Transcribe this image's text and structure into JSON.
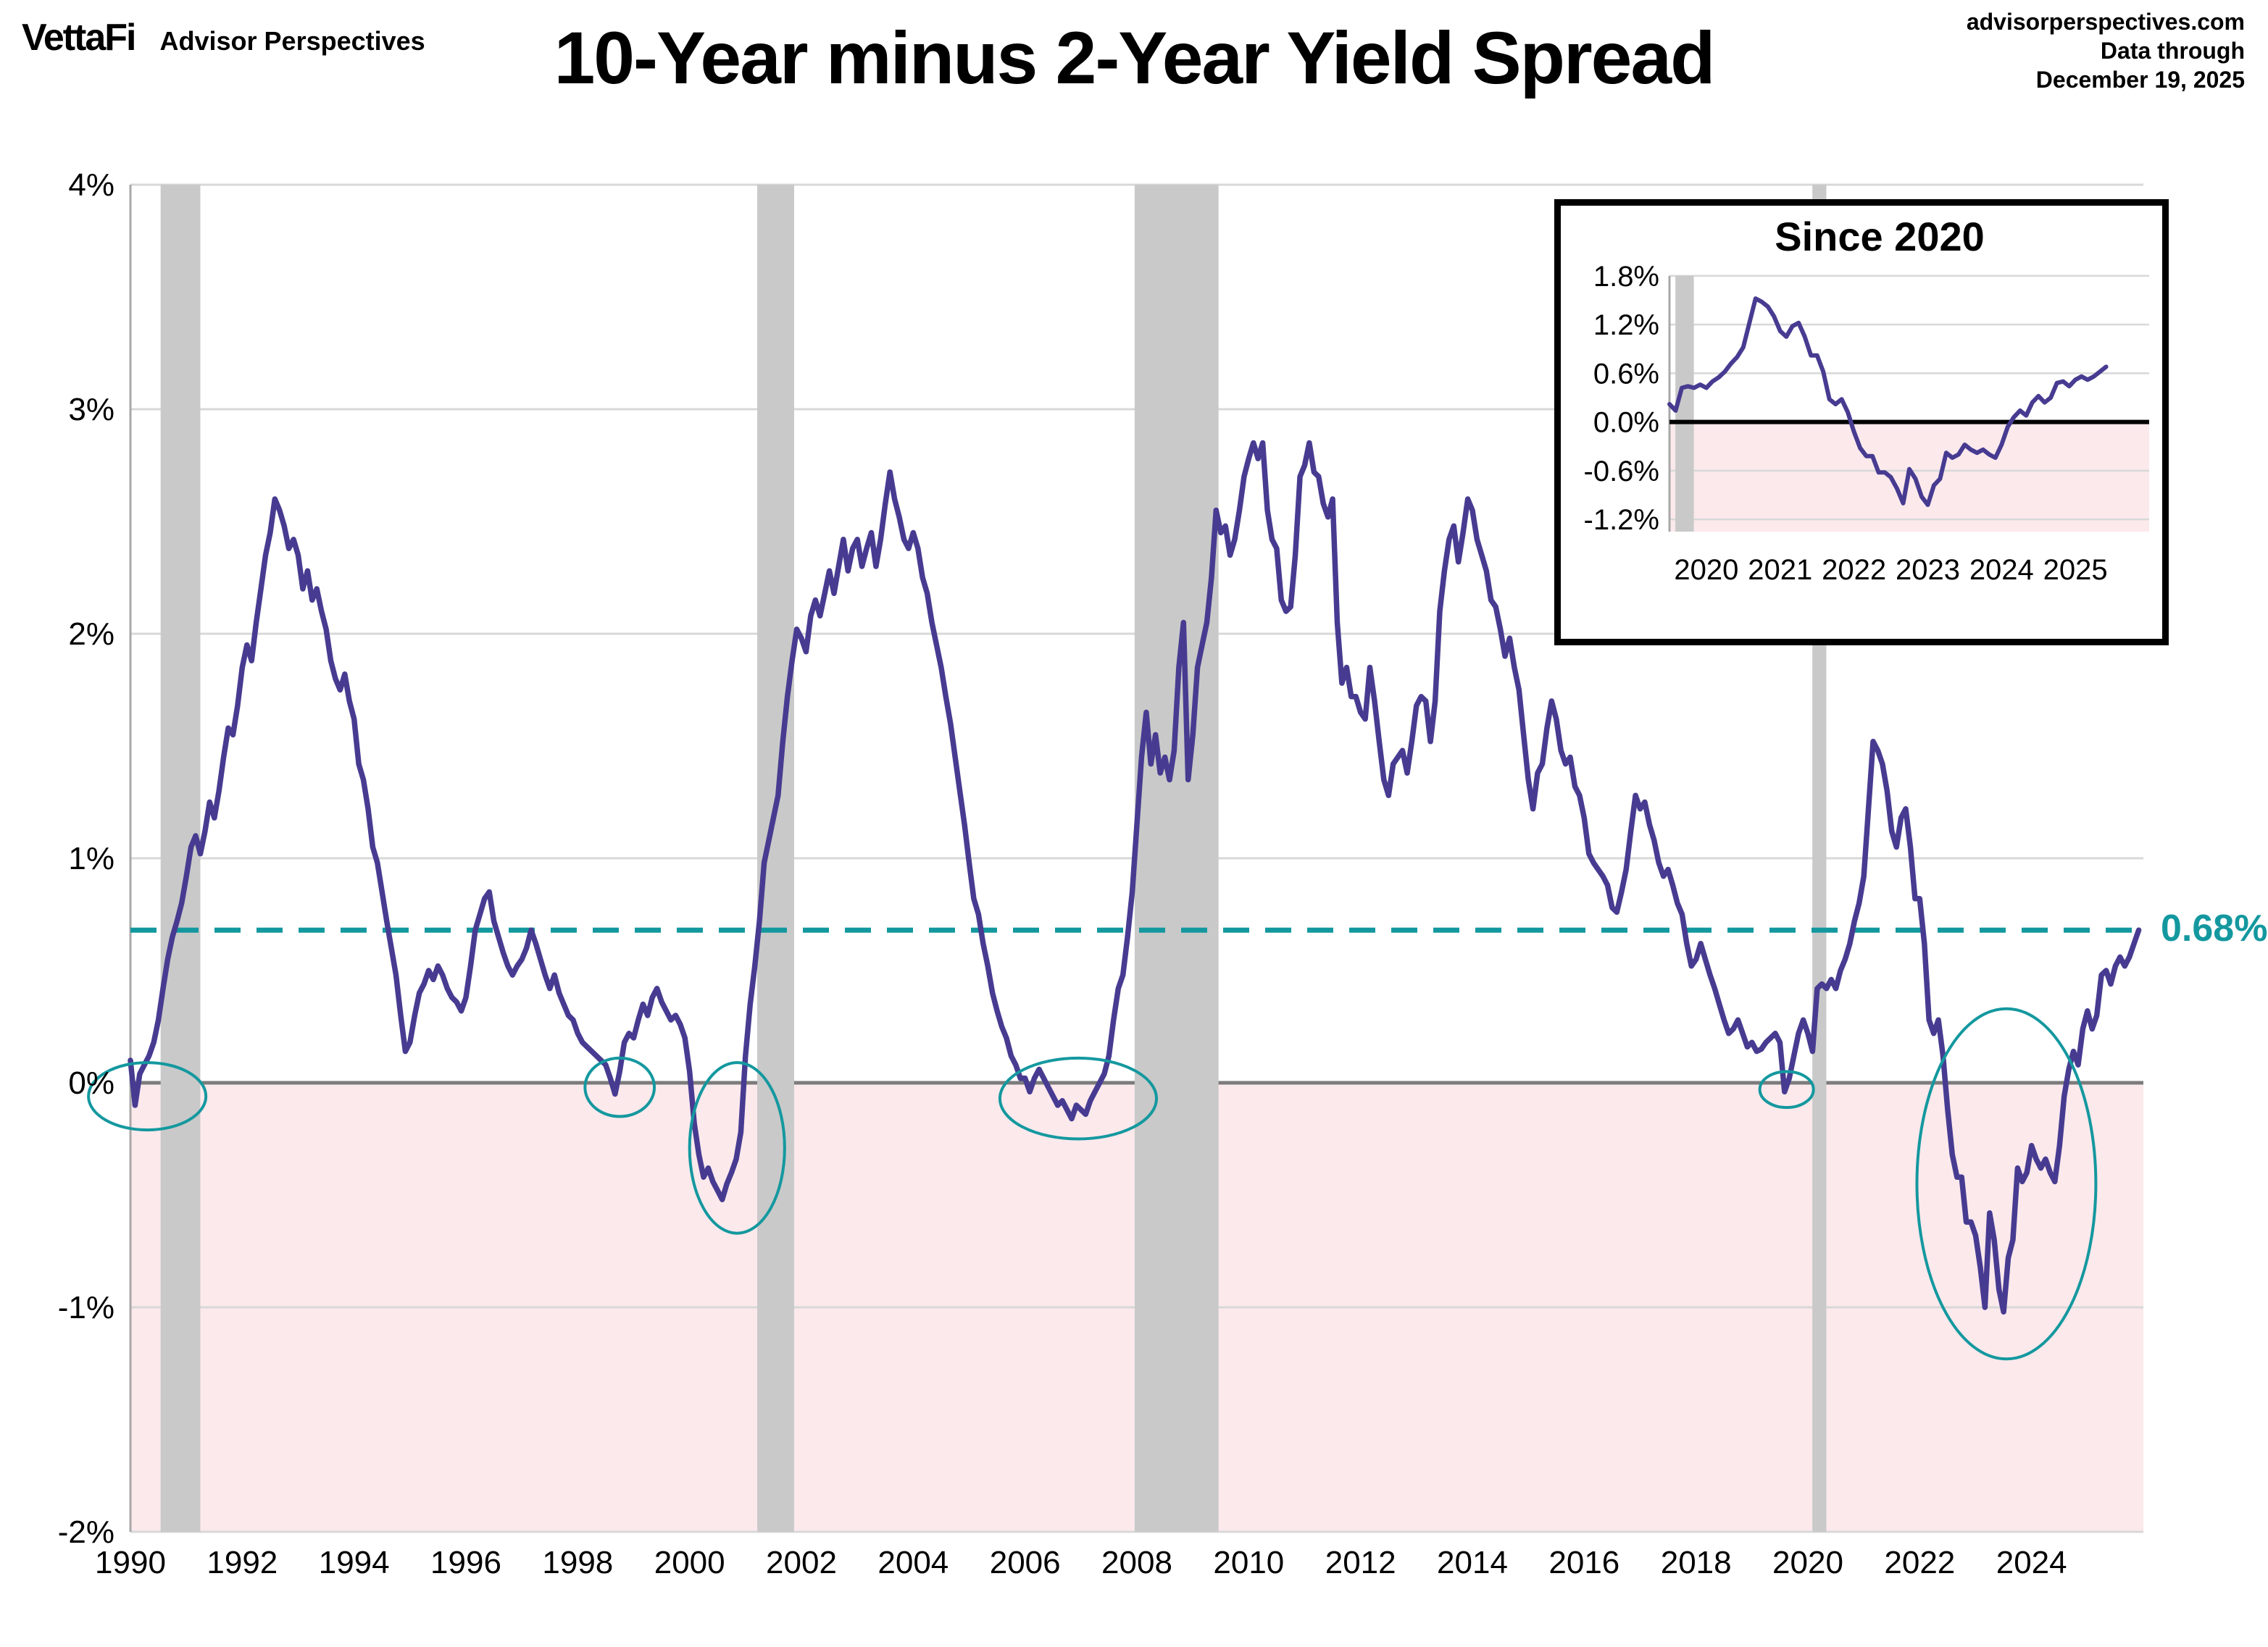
{
  "header": {
    "logo_text": "VettaFi",
    "logo_subtext": "Advisor Perspectives",
    "title": "10-Year minus 2-Year Yield Spread",
    "source_line1": "advisorperspectives.com",
    "source_line2": "Data through",
    "source_line3": "December 19, 2025"
  },
  "colors": {
    "line": "#473B91",
    "teal": "#14989F",
    "pink": "#FBE9EC",
    "recession": "#C9C9C9",
    "gridline": "#D8D8D8",
    "zero_line": "#7C7C7C",
    "axis_line": "#A8A8A8",
    "text": "#000000"
  },
  "chart_data": {
    "type": "line",
    "title": "10-Year minus 2-Year Yield Spread",
    "xlabel": "",
    "ylabel": "",
    "x_range": [
      1990,
      2026
    ],
    "ylim_pct": [
      -2,
      4
    ],
    "grid": "horizontal",
    "y_ticks": [
      "4%",
      "3%",
      "2%",
      "1%",
      "0%",
      "-1%",
      "-2%"
    ],
    "y_tick_values": [
      4,
      3,
      2,
      1,
      0,
      -1,
      -2
    ],
    "x_ticks": [
      1990,
      1992,
      1994,
      1996,
      1998,
      2000,
      2002,
      2004,
      2006,
      2008,
      2010,
      2012,
      2014,
      2016,
      2018,
      2020,
      2022,
      2024
    ],
    "latest_label": "0.68%",
    "latest_value": 0.68,
    "dashed_line_value": 0.68,
    "shaded_below_zero": true,
    "recessions": [
      [
        1990.54,
        1991.25
      ],
      [
        2001.21,
        2001.87
      ],
      [
        2007.96,
        2009.46
      ],
      [
        2020.08,
        2020.33
      ]
    ],
    "inversion_circles": [
      {
        "cx": 1990.3,
        "cy": -0.06,
        "rx": 1.05,
        "ry": 0.15
      },
      {
        "cx": 1998.75,
        "cy": -0.02,
        "rx": 0.62,
        "ry": 0.13
      },
      {
        "cx": 2000.85,
        "cy": -0.29,
        "rx": 0.85,
        "ry": 0.38
      },
      {
        "cx": 2006.95,
        "cy": -0.07,
        "rx": 1.4,
        "ry": 0.18
      },
      {
        "cx": 2019.62,
        "cy": -0.03,
        "rx": 0.48,
        "ry": 0.08
      },
      {
        "cx": 2023.55,
        "cy": -0.45,
        "rx": 1.6,
        "ry": 0.78
      }
    ],
    "series": [
      {
        "name": "10-Year minus 2-Year Treasury yield spread (%)",
        "start_year": 1990,
        "interval_months": 1,
        "values": [
          0.1,
          -0.1,
          0.04,
          0.08,
          0.12,
          0.18,
          0.28,
          0.42,
          0.55,
          0.65,
          0.72,
          0.8,
          0.92,
          1.05,
          1.1,
          1.02,
          1.12,
          1.25,
          1.18,
          1.3,
          1.45,
          1.58,
          1.55,
          1.68,
          1.85,
          1.95,
          1.88,
          2.05,
          2.2,
          2.35,
          2.45,
          2.6,
          2.55,
          2.48,
          2.38,
          2.42,
          2.35,
          2.2,
          2.28,
          2.15,
          2.2,
          2.1,
          2.02,
          1.88,
          1.8,
          1.75,
          1.82,
          1.7,
          1.62,
          1.42,
          1.35,
          1.22,
          1.05,
          0.98,
          0.85,
          0.72,
          0.6,
          0.48,
          0.3,
          0.14,
          0.18,
          0.3,
          0.4,
          0.44,
          0.5,
          0.46,
          0.52,
          0.48,
          0.42,
          0.38,
          0.36,
          0.32,
          0.38,
          0.52,
          0.68,
          0.75,
          0.82,
          0.85,
          0.72,
          0.65,
          0.58,
          0.52,
          0.48,
          0.52,
          0.55,
          0.6,
          0.68,
          0.62,
          0.55,
          0.48,
          0.42,
          0.48,
          0.4,
          0.35,
          0.3,
          0.28,
          0.22,
          0.18,
          0.16,
          0.14,
          0.12,
          0.1,
          0.08,
          0.02,
          -0.05,
          0.05,
          0.18,
          0.22,
          0.2,
          0.28,
          0.35,
          0.3,
          0.38,
          0.42,
          0.36,
          0.32,
          0.28,
          0.3,
          0.26,
          0.2,
          0.05,
          -0.18,
          -0.32,
          -0.42,
          -0.38,
          -0.44,
          -0.48,
          -0.52,
          -0.45,
          -0.4,
          -0.34,
          -0.22,
          0.12,
          0.35,
          0.52,
          0.72,
          0.98,
          1.08,
          1.18,
          1.28,
          1.52,
          1.72,
          1.88,
          2.02,
          1.98,
          1.92,
          2.08,
          2.15,
          2.08,
          2.18,
          2.28,
          2.18,
          2.3,
          2.42,
          2.28,
          2.38,
          2.42,
          2.3,
          2.38,
          2.45,
          2.3,
          2.42,
          2.58,
          2.72,
          2.6,
          2.52,
          2.42,
          2.38,
          2.45,
          2.38,
          2.25,
          2.18,
          2.05,
          1.95,
          1.85,
          1.72,
          1.6,
          1.45,
          1.3,
          1.15,
          0.98,
          0.82,
          0.75,
          0.62,
          0.52,
          0.4,
          0.32,
          0.25,
          0.2,
          0.12,
          0.08,
          0.02,
          0.02,
          -0.04,
          0.02,
          0.06,
          0.02,
          -0.02,
          -0.06,
          -0.1,
          -0.08,
          -0.12,
          -0.16,
          -0.1,
          -0.12,
          -0.14,
          -0.08,
          -0.04,
          0.0,
          0.04,
          0.12,
          0.28,
          0.42,
          0.48,
          0.65,
          0.85,
          1.15,
          1.45,
          1.65,
          1.42,
          1.55,
          1.38,
          1.45,
          1.35,
          1.48,
          1.85,
          2.05,
          1.35,
          1.55,
          1.85,
          1.95,
          2.05,
          2.25,
          2.55,
          2.45,
          2.48,
          2.35,
          2.42,
          2.55,
          2.7,
          2.78,
          2.85,
          2.78,
          2.85,
          2.55,
          2.42,
          2.38,
          2.15,
          2.1,
          2.12,
          2.35,
          2.7,
          2.75,
          2.85,
          2.72,
          2.7,
          2.58,
          2.52,
          2.6,
          2.05,
          1.78,
          1.85,
          1.72,
          1.72,
          1.65,
          1.62,
          1.85,
          1.7,
          1.52,
          1.35,
          1.28,
          1.42,
          1.45,
          1.48,
          1.38,
          1.52,
          1.68,
          1.72,
          1.7,
          1.52,
          1.7,
          2.1,
          2.28,
          2.42,
          2.48,
          2.32,
          2.45,
          2.6,
          2.55,
          2.42,
          2.35,
          2.28,
          2.15,
          2.12,
          2.02,
          1.9,
          1.98,
          1.85,
          1.75,
          1.55,
          1.35,
          1.22,
          1.38,
          1.42,
          1.58,
          1.7,
          1.62,
          1.48,
          1.42,
          1.45,
          1.32,
          1.28,
          1.18,
          1.02,
          0.98,
          0.95,
          0.92,
          0.88,
          0.78,
          0.76,
          0.85,
          0.95,
          1.12,
          1.28,
          1.22,
          1.25,
          1.15,
          1.08,
          0.98,
          0.92,
          0.95,
          0.88,
          0.8,
          0.75,
          0.62,
          0.52,
          0.55,
          0.62,
          0.55,
          0.48,
          0.42,
          0.35,
          0.28,
          0.22,
          0.24,
          0.28,
          0.22,
          0.16,
          0.18,
          0.14,
          0.15,
          0.18,
          0.2,
          0.22,
          0.18,
          -0.04,
          0.02,
          0.12,
          0.22,
          0.28,
          0.22,
          0.14,
          0.42,
          0.44,
          0.42,
          0.46,
          0.42,
          0.5,
          0.55,
          0.62,
          0.72,
          0.8,
          0.92,
          1.22,
          1.52,
          1.48,
          1.42,
          1.3,
          1.12,
          1.05,
          1.18,
          1.22,
          1.05,
          0.82,
          0.82,
          0.62,
          0.28,
          0.22,
          0.28,
          0.12,
          -0.12,
          -0.32,
          -0.42,
          -0.42,
          -0.62,
          -0.62,
          -0.68,
          -0.82,
          -1.0,
          -0.58,
          -0.7,
          -0.92,
          -1.02,
          -0.78,
          -0.7,
          -0.38,
          -0.44,
          -0.4,
          -0.28,
          -0.34,
          -0.38,
          -0.34,
          -0.4,
          -0.44,
          -0.28,
          -0.06,
          0.06,
          0.14,
          0.08,
          0.24,
          0.32,
          0.24,
          0.3,
          0.48,
          0.5,
          0.44,
          0.52,
          0.56,
          0.52,
          0.56,
          0.62,
          0.68
        ]
      }
    ],
    "inset": {
      "title": "Since 2020",
      "x_range": [
        2020,
        2026.5
      ],
      "ylim_pct": [
        -1.35,
        1.95
      ],
      "y_ticks": [
        "1.8%",
        "1.2%",
        "0.6%",
        "0.0%",
        "-0.6%",
        "-1.2%"
      ],
      "y_tick_values": [
        1.8,
        1.2,
        0.6,
        0.0,
        -0.6,
        -1.2
      ],
      "x_ticks": [
        2020,
        2021,
        2022,
        2023,
        2024,
        2025
      ],
      "recession": [
        2020.08,
        2020.33
      ],
      "data_start_year": 2020
    }
  }
}
